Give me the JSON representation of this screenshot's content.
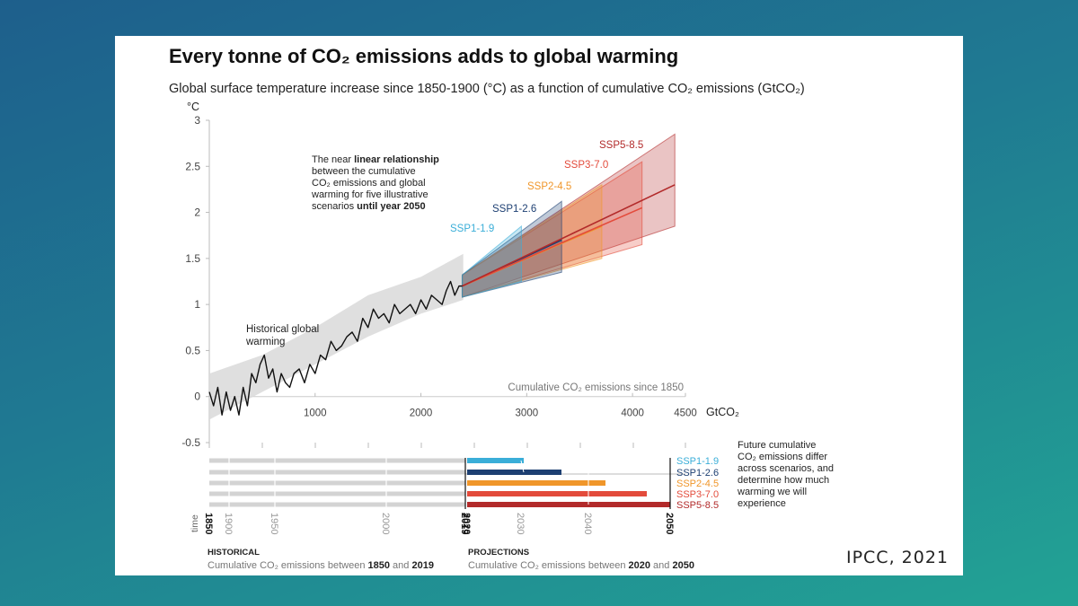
{
  "slide": {
    "credit": "IPCC, 2021"
  },
  "chart_data": {
    "type": "line",
    "title": "Every tonne of CO₂ emissions adds to global warming",
    "subtitle": "Global surface temperature increase since 1850-1900 (°C) as a function of cumulative CO₂ emissions (GtCO₂)",
    "ylabel": "°C",
    "xlabel": "GtCO₂",
    "x_axis_note": "Cumulative CO₂ emissions since 1850",
    "xlim": [
      0,
      4500
    ],
    "ylim": [
      -0.5,
      3
    ],
    "x_ticks": [
      "1000",
      "2000",
      "3000",
      "4000",
      "4500"
    ],
    "y_ticks": [
      "-0.5",
      "0",
      "0.5",
      "1",
      "1.5",
      "2",
      "2.5",
      "3"
    ],
    "historical": {
      "label_line1": "Historical global",
      "label_line2": "warming",
      "x": [
        0,
        40,
        80,
        120,
        160,
        200,
        240,
        280,
        320,
        360,
        400,
        440,
        480,
        520,
        560,
        600,
        640,
        680,
        720,
        760,
        800,
        850,
        900,
        950,
        1000,
        1050,
        1100,
        1150,
        1200,
        1250,
        1300,
        1350,
        1400,
        1450,
        1500,
        1550,
        1600,
        1650,
        1700,
        1750,
        1800,
        1850,
        1900,
        1950,
        2000,
        2050,
        2100,
        2150,
        2200,
        2240,
        2280,
        2320,
        2360,
        2390
      ],
      "y": [
        0.05,
        -0.1,
        0.1,
        -0.2,
        0.05,
        -0.15,
        0.0,
        -0.2,
        0.1,
        -0.1,
        0.25,
        0.15,
        0.35,
        0.45,
        0.2,
        0.3,
        0.05,
        0.25,
        0.15,
        0.1,
        0.25,
        0.3,
        0.15,
        0.35,
        0.25,
        0.45,
        0.4,
        0.6,
        0.5,
        0.55,
        0.65,
        0.7,
        0.6,
        0.85,
        0.75,
        0.95,
        0.85,
        0.9,
        0.8,
        1.0,
        0.9,
        0.95,
        1.0,
        0.9,
        1.05,
        0.95,
        1.1,
        1.05,
        1.0,
        1.15,
        1.25,
        1.1,
        1.2,
        1.2
      ]
    },
    "historical_band": {
      "x": [
        0,
        500,
        1000,
        1500,
        2000,
        2400
      ],
      "lower": [
        -0.25,
        0.05,
        0.35,
        0.65,
        0.9,
        1.05
      ],
      "upper": [
        0.25,
        0.45,
        0.75,
        1.1,
        1.3,
        1.55
      ]
    },
    "scenarios": [
      {
        "name": "SSP1-1.9",
        "color": "#3aaed8",
        "x_start": 2390,
        "x_end": 2950,
        "y_start": 1.2,
        "y_end": 1.5,
        "lower_end": 1.25,
        "upper_end": 1.85
      },
      {
        "name": "SSP1-2.6",
        "color": "#1d3f72",
        "x_start": 2390,
        "x_end": 3330,
        "y_start": 1.2,
        "y_end": 1.7,
        "lower_end": 1.35,
        "upper_end": 2.12
      },
      {
        "name": "SSP2-4.5",
        "color": "#f0962a",
        "x_start": 2390,
        "x_end": 3710,
        "y_start": 1.2,
        "y_end": 1.85,
        "lower_end": 1.5,
        "upper_end": 2.3
      },
      {
        "name": "SSP3-7.0",
        "color": "#e34b3b",
        "x_start": 2390,
        "x_end": 4090,
        "y_start": 1.2,
        "y_end": 2.05,
        "lower_end": 1.65,
        "upper_end": 2.55
      },
      {
        "name": "SSP5-8.5",
        "color": "#b22a2a",
        "x_start": 2390,
        "x_end": 4400,
        "y_start": 1.2,
        "y_end": 2.3,
        "lower_end": 1.85,
        "upper_end": 2.85
      }
    ],
    "annotation": {
      "line1_a": "The near ",
      "line1_b": "linear relationship",
      "line2": "between the cumulative",
      "line3": "CO₂ emissions and global",
      "line4": "warming for five illustrative",
      "line5_a": "scenarios ",
      "line5_b": "until year 2050"
    },
    "timeline": {
      "years": [
        "1850",
        "1900",
        "1950",
        "2000",
        "2019",
        "2020",
        "2030",
        "2040",
        "2050"
      ],
      "time_label": "time",
      "note_lines": [
        "Future cumulative",
        "CO₂ emissions differ",
        "across scenarios, and",
        "determine how much",
        "warming we will",
        "experience"
      ],
      "historical_heading": "HISTORICAL",
      "historical_sub_a": "Cumulative CO₂ emissions between ",
      "historical_sub_b": "1850",
      "historical_sub_c": " and ",
      "historical_sub_d": "2019",
      "projections_heading": "PROJECTIONS",
      "projections_sub_a": "Cumulative CO₂ emissions between ",
      "projections_sub_b": "2020",
      "projections_sub_c": " and ",
      "projections_sub_d": "2050"
    }
  }
}
